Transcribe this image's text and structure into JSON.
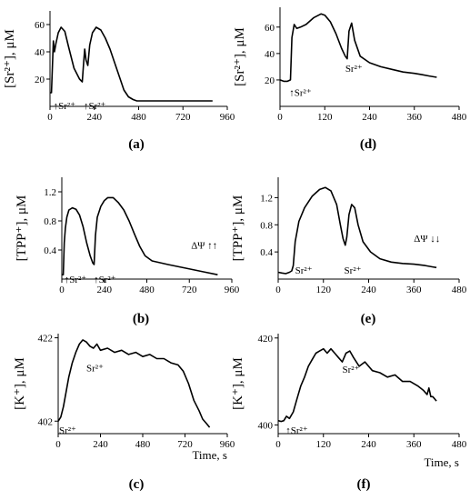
{
  "chart_data": [
    {
      "id": "a",
      "type": "line",
      "panel_label": "(a)",
      "ylabel": "[Sr²⁺], μM",
      "xlabel": "",
      "xlim": [
        0,
        960
      ],
      "ylim": [
        0,
        70
      ],
      "xticks": [
        "0",
        "240",
        "480",
        "720",
        "960"
      ],
      "xtick_values": [
        0,
        240,
        480,
        720,
        960
      ],
      "yticks": [
        "20",
        "40",
        "60"
      ],
      "ytick_values": [
        20,
        40,
        60
      ],
      "series": [
        {
          "x": [
            0,
            8,
            18,
            24,
            32,
            45,
            60,
            80,
            100,
            130,
            160,
            175,
            182,
            188,
            195,
            205,
            215,
            230,
            250,
            275,
            300,
            325,
            350,
            375,
            400,
            425,
            450,
            470,
            500,
            600,
            700,
            800,
            880
          ],
          "y": [
            10,
            10,
            48,
            40,
            46,
            54,
            58,
            55,
            44,
            28,
            20,
            18,
            32,
            42,
            34,
            30,
            45,
            54,
            58,
            56,
            50,
            42,
            32,
            22,
            12,
            7,
            5,
            4,
            4,
            4,
            4,
            4,
            4
          ]
        }
      ],
      "annotations": [
        {
          "text": "↑Sr²⁺",
          "x": 18,
          "y": -2
        },
        {
          "text": "↑Sr²⁺",
          "x": 182,
          "y": -2
        }
      ]
    },
    {
      "id": "d",
      "type": "line",
      "panel_label": "(d)",
      "ylabel": "[Sr²⁺], μM",
      "xlabel": "",
      "xlim": [
        0,
        480
      ],
      "ylim": [
        0,
        75
      ],
      "xticks": [
        "0",
        "120",
        "240",
        "360",
        "480"
      ],
      "xtick_values": [
        0,
        120,
        240,
        360,
        480
      ],
      "yticks": [
        "20",
        "40",
        "60"
      ],
      "ytick_values": [
        20,
        40,
        60
      ],
      "series": [
        {
          "x": [
            0,
            10,
            20,
            28,
            32,
            38,
            45,
            55,
            70,
            90,
            110,
            120,
            135,
            150,
            165,
            175,
            180,
            185,
            192,
            200,
            215,
            240,
            270,
            300,
            330,
            360,
            380,
            400,
            420
          ],
          "y": [
            20,
            19,
            19,
            20,
            52,
            62,
            59,
            60,
            62,
            67,
            70,
            69,
            64,
            55,
            44,
            38,
            36,
            57,
            63,
            50,
            38,
            33,
            30,
            28,
            26,
            25,
            24,
            23,
            22
          ]
        }
      ],
      "annotations": [
        {
          "text": "↑Sr²⁺",
          "x": 25,
          "y": 8
        },
        {
          "text": "Sr²⁺",
          "x": 175,
          "y": 26
        }
      ]
    },
    {
      "id": "b",
      "type": "line",
      "panel_label": "(b)",
      "ylabel": "[TPP⁺], μM",
      "xlabel": "",
      "xlim": [
        0,
        960
      ],
      "ylim": [
        0,
        1.4
      ],
      "xticks": [
        "0",
        "240",
        "480",
        "720",
        "960"
      ],
      "xtick_values": [
        0,
        240,
        480,
        720,
        960
      ],
      "yticks": [
        "0.4",
        "0.8",
        "1.2"
      ],
      "ytick_values": [
        0.4,
        0.8,
        1.2
      ],
      "series": [
        {
          "x": [
            0,
            8,
            14,
            20,
            28,
            40,
            60,
            80,
            100,
            120,
            140,
            160,
            175,
            182,
            190,
            200,
            220,
            240,
            260,
            290,
            320,
            350,
            380,
            410,
            440,
            470,
            510,
            600,
            700,
            800,
            880
          ],
          "y": [
            0.06,
            0.06,
            0.5,
            0.7,
            0.85,
            0.95,
            0.98,
            0.96,
            0.88,
            0.72,
            0.5,
            0.32,
            0.22,
            0.2,
            0.6,
            0.85,
            1.0,
            1.08,
            1.12,
            1.12,
            1.05,
            0.95,
            0.8,
            0.62,
            0.45,
            0.32,
            0.25,
            0.2,
            0.15,
            0.1,
            0.06
          ]
        }
      ],
      "annotations": [
        {
          "text": "↑Sr²⁺",
          "x": 14,
          "y": -0.05
        },
        {
          "text": "↑Sr²⁺",
          "x": 180,
          "y": -0.05
        },
        {
          "text": "ΔΨ ↑↑",
          "x": 730,
          "y": 0.42
        }
      ]
    },
    {
      "id": "e",
      "type": "line",
      "panel_label": "(e)",
      "ylabel": "[TPP⁺], μM",
      "xlabel": "",
      "xlim": [
        0,
        480
      ],
      "ylim": [
        0,
        1.5
      ],
      "xticks": [
        "0",
        "120",
        "240",
        "360",
        "480"
      ],
      "xtick_values": [
        0,
        120,
        240,
        360,
        480
      ],
      "yticks": [
        "0.4",
        "0.8",
        "1.2"
      ],
      "ytick_values": [
        0.4,
        0.8,
        1.2
      ],
      "series": [
        {
          "x": [
            0,
            10,
            20,
            30,
            36,
            40,
            45,
            55,
            70,
            90,
            110,
            125,
            140,
            155,
            165,
            172,
            178,
            182,
            188,
            195,
            203,
            212,
            225,
            245,
            270,
            300,
            330,
            360,
            390,
            410,
            420
          ],
          "y": [
            0.1,
            0.09,
            0.08,
            0.1,
            0.12,
            0.2,
            0.55,
            0.85,
            1.05,
            1.22,
            1.32,
            1.35,
            1.3,
            1.1,
            0.8,
            0.6,
            0.5,
            0.62,
            0.95,
            1.1,
            1.05,
            0.8,
            0.55,
            0.4,
            0.3,
            0.25,
            0.23,
            0.22,
            0.2,
            0.18,
            0.17
          ]
        }
      ],
      "annotations": [
        {
          "text": "Sr²⁺",
          "x": 45,
          "y": 0.08
        },
        {
          "text": "Sr²⁺",
          "x": 175,
          "y": 0.08
        },
        {
          "text": "ΔΨ ↓↓",
          "x": 360,
          "y": 0.55
        }
      ]
    },
    {
      "id": "c",
      "type": "line",
      "panel_label": "(c)",
      "ylabel": "[K⁺], μM",
      "xlabel": "Time, s",
      "xlim": [
        0,
        960
      ],
      "ylim": [
        399,
        423
      ],
      "xticks": [
        "0",
        "240",
        "480",
        "720",
        "960"
      ],
      "xtick_values": [
        0,
        240,
        480,
        720,
        960
      ],
      "yticks": [
        "402",
        "422"
      ],
      "ytick_values": [
        402,
        422
      ],
      "series": [
        {
          "x": [
            0,
            15,
            30,
            45,
            60,
            80,
            100,
            120,
            140,
            160,
            180,
            200,
            220,
            240,
            280,
            320,
            360,
            400,
            440,
            480,
            520,
            560,
            600,
            640,
            680,
            710,
            740,
            770,
            800,
            820,
            840,
            860
          ],
          "y": [
            402,
            403,
            405.5,
            409,
            412.5,
            416,
            418.5,
            420.5,
            421.5,
            421,
            420,
            419.5,
            420.5,
            419,
            419.5,
            418.5,
            419,
            418,
            418.5,
            417.5,
            418,
            417,
            417,
            416,
            415.5,
            414,
            411,
            407,
            404.5,
            402.5,
            401.5,
            400.5
          ]
        }
      ],
      "annotations": [
        {
          "text": "Sr²⁺",
          "x": 5,
          "y": 399
        },
        {
          "text": "Sr²⁺",
          "x": 160,
          "y": 414
        }
      ]
    },
    {
      "id": "f",
      "type": "line",
      "panel_label": "(f)",
      "ylabel": "[K⁺], μM",
      "xlabel": "Time, s",
      "xlim": [
        0,
        480
      ],
      "ylim": [
        398,
        421
      ],
      "xticks": [
        "0",
        "120",
        "240",
        "360",
        "480"
      ],
      "xtick_values": [
        0,
        120,
        240,
        360,
        480
      ],
      "yticks": [
        "400",
        "420"
      ],
      "ytick_values": [
        400,
        420
      ],
      "series": [
        {
          "x": [
            0,
            8,
            15,
            22,
            30,
            40,
            50,
            60,
            70,
            80,
            90,
            100,
            110,
            120,
            130,
            140,
            150,
            160,
            170,
            180,
            190,
            200,
            215,
            230,
            250,
            270,
            290,
            310,
            330,
            350,
            370,
            385,
            395,
            400,
            405,
            410,
            415,
            420
          ],
          "y": [
            401,
            400.8,
            401,
            402,
            401.5,
            403,
            406,
            409,
            411,
            413.5,
            415,
            416.5,
            417,
            417.5,
            416.5,
            417.5,
            416.5,
            415.5,
            414.5,
            416.5,
            417,
            415.5,
            413.5,
            414.5,
            412.5,
            412,
            411,
            411.5,
            410,
            410,
            409,
            408,
            407,
            408.5,
            406.5,
            406.5,
            406,
            405.5
          ]
        }
      ],
      "annotations": [
        {
          "text": "↑Sr²⁺",
          "x": 20,
          "y": 398
        },
        {
          "text": "Sr²⁺",
          "x": 170,
          "y": 412
        }
      ]
    }
  ]
}
